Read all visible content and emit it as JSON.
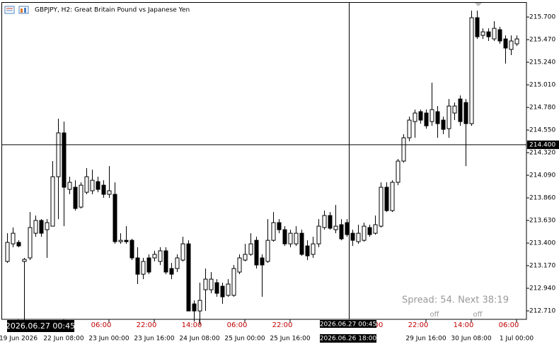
{
  "chart_data": {
    "type": "candlestick",
    "title": "GBPJPY, H2:  Great Britain Pound vs Japanese Yen",
    "up_color": "#ffffff",
    "down_color": "#000000",
    "ylim": [
      212.624,
      215.873
    ],
    "yticks": [
      {
        "value": 215.7,
        "label": "215.700"
      },
      {
        "value": 215.47,
        "label": "215.470"
      },
      {
        "value": 215.24,
        "label": "215.240"
      },
      {
        "value": 215.01,
        "label": "215.010"
      },
      {
        "value": 214.78,
        "label": "214.780"
      },
      {
        "value": 214.55,
        "label": "214.550"
      },
      {
        "value": 214.32,
        "label": "214.320"
      },
      {
        "value": 214.09,
        "label": "214.090"
      },
      {
        "value": 213.86,
        "label": "213.860"
      },
      {
        "value": 213.63,
        "label": "213.630"
      },
      {
        "value": 213.4,
        "label": "213.400"
      },
      {
        "value": 213.17,
        "label": "213.170"
      },
      {
        "value": 212.94,
        "label": "212.940"
      },
      {
        "value": 212.71,
        "label": "212.710"
      }
    ],
    "categories": [
      null,
      null,
      "19 Jun 2026",
      null,
      null,
      null,
      null,
      null,
      null,
      null,
      "22 Jun 08:00",
      null,
      null,
      null,
      null,
      null,
      null,
      null,
      "23 Jun 00:00",
      null,
      null,
      null,
      null,
      null,
      null,
      null,
      "23 Jun 16:00",
      null,
      null,
      null,
      null,
      null,
      null,
      null,
      "24 Jun 08:00",
      null,
      null,
      null,
      null,
      null,
      null,
      null,
      "25 Jun 00:00",
      null,
      null,
      null,
      null,
      null,
      null,
      null,
      "25 Jun 16:00",
      null,
      null,
      null,
      null,
      null,
      null,
      null,
      null,
      null,
      null,
      null,
      null,
      null,
      null,
      null,
      null,
      null,
      null,
      null,
      null,
      null,
      null,
      null,
      "29 Jun 16:00",
      null,
      null,
      null,
      null,
      null,
      null,
      null,
      "30 Jun 08:00",
      null,
      null,
      null,
      null,
      null,
      null,
      null,
      "1 Jul 00:00"
    ],
    "time_marks": [
      null,
      null,
      null,
      null,
      null,
      null,
      null,
      null,
      null,
      null,
      null,
      null,
      null,
      null,
      null,
      null,
      null,
      "06:00",
      null,
      null,
      null,
      null,
      null,
      null,
      null,
      "22:00",
      null,
      null,
      null,
      null,
      null,
      null,
      null,
      "14:00",
      null,
      null,
      null,
      null,
      null,
      null,
      null,
      "06:00",
      null,
      null,
      null,
      null,
      null,
      null,
      null,
      "22:00",
      null,
      null,
      null,
      null,
      null,
      null,
      null,
      null,
      null,
      null,
      null,
      null,
      null,
      null,
      null,
      "06:00",
      null,
      null,
      null,
      null,
      null,
      null,
      null,
      "22:00",
      null,
      null,
      null,
      null,
      null,
      null,
      null,
      "14:00",
      null,
      null,
      null,
      null,
      null,
      null,
      null,
      "06:00",
      null
    ],
    "open": [
      213.213,
      213.392,
      213.407,
      213.213,
      213.249,
      213.5,
      213.63,
      213.536,
      213.572,
      214.075,
      214.521,
      213.946,
      213.968,
      213.766,
      213.917,
      213.932,
      214.025,
      213.989,
      213.896,
      213.896,
      213.414,
      213.428,
      213.428,
      213.249,
      213.083,
      213.249,
      213.249,
      213.213,
      213.321,
      213.141,
      213.141,
      213.227,
      213.392,
      212.781,
      212.709,
      212.925,
      212.925,
      212.997,
      212.961,
      212.868,
      212.868,
      213.105,
      213.227,
      213.285,
      213.428,
      213.249,
      213.213,
      213.428,
      213.608,
      213.536,
      213.392,
      213.392,
      213.5,
      213.371,
      213.285,
      213.392,
      213.558,
      213.68,
      213.536,
      213.587,
      213.608,
      213.5,
      213.414,
      213.428,
      213.558,
      213.5,
      213.572,
      213.968,
      213.73,
      214.018,
      214.234,
      214.471,
      214.636,
      214.737,
      214.723,
      214.636,
      214.737,
      214.651,
      214.564,
      214.723,
      214.866,
      214.83,
      214.615,
      215.693,
      215.513,
      215.549,
      215.477,
      215.571,
      215.477,
      215.37,
      215.427
    ],
    "high": [
      213.5,
      213.558,
      213.428,
      213.249,
      213.716,
      213.68,
      213.644,
      213.644,
      214.234,
      214.665,
      214.636,
      214.075,
      214.039,
      214.018,
      214.162,
      214.147,
      214.075,
      214.039,
      214.183,
      214.018,
      213.5,
      213.572,
      213.443,
      213.357,
      213.249,
      213.285,
      213.321,
      213.357,
      213.357,
      213.198,
      213.285,
      213.464,
      213.428,
      212.817,
      212.997,
      213.141,
      213.105,
      213.033,
      212.997,
      213.033,
      213.177,
      213.285,
      213.392,
      213.5,
      213.464,
      213.285,
      213.644,
      213.716,
      213.644,
      213.572,
      213.536,
      213.572,
      213.536,
      213.428,
      213.464,
      213.644,
      213.73,
      213.716,
      213.788,
      213.644,
      213.644,
      213.536,
      213.587,
      213.608,
      213.587,
      213.68,
      214.018,
      214.018,
      214.039,
      214.256,
      214.507,
      214.686,
      214.758,
      214.758,
      214.758,
      215.032,
      214.794,
      214.686,
      214.866,
      214.83,
      214.902,
      214.866,
      215.765,
      215.765,
      215.585,
      215.585,
      215.657,
      215.6,
      215.513,
      215.513,
      215.513
    ],
    "low": [
      213.198,
      213.357,
      213.357,
      212.565,
      213.227,
      213.464,
      213.464,
      213.249,
      213.572,
      213.644,
      213.572,
      213.896,
      213.73,
      213.752,
      213.896,
      213.896,
      213.917,
      213.86,
      213.86,
      213.392,
      213.392,
      213.392,
      213.227,
      212.983,
      213.033,
      213.083,
      213.213,
      213.177,
      213.083,
      213.033,
      213.105,
      213.213,
      212.709,
      212.601,
      212.565,
      212.709,
      212.889,
      212.853,
      212.781,
      212.853,
      212.853,
      213.083,
      213.213,
      213.27,
      213.141,
      212.853,
      213.198,
      213.414,
      213.5,
      213.371,
      213.357,
      213.371,
      213.27,
      213.227,
      213.249,
      213.357,
      213.536,
      213.536,
      213.5,
      213.428,
      213.464,
      213.371,
      213.392,
      213.414,
      213.464,
      213.486,
      213.558,
      213.716,
      213.716,
      213.989,
      214.22,
      214.435,
      214.471,
      214.615,
      214.564,
      214.593,
      214.471,
      214.507,
      214.471,
      214.651,
      214.593,
      214.183,
      214.593,
      215.477,
      215.477,
      215.456,
      215.456,
      215.427,
      215.226,
      215.312,
      215.405
    ],
    "close": [
      213.407,
      213.5,
      213.371,
      213.234,
      213.558,
      213.63,
      213.5,
      213.608,
      214.075,
      214.521,
      213.968,
      214.018,
      213.752,
      213.989,
      214.075,
      214.039,
      213.946,
      213.896,
      213.932,
      213.414,
      213.428,
      213.414,
      213.249,
      213.083,
      213.213,
      213.105,
      213.285,
      213.321,
      213.105,
      213.083,
      213.249,
      213.392,
      212.709,
      212.709,
      212.817,
      213.033,
      213.033,
      212.889,
      212.853,
      212.983,
      213.141,
      213.249,
      213.285,
      213.392,
      213.177,
      213.177,
      213.428,
      213.608,
      213.536,
      213.392,
      213.5,
      213.5,
      213.285,
      213.27,
      213.392,
      213.572,
      213.68,
      213.551,
      213.572,
      213.443,
      213.486,
      213.428,
      213.5,
      213.572,
      213.486,
      213.587,
      213.968,
      213.73,
      214.018,
      214.234,
      214.471,
      214.651,
      214.723,
      214.651,
      214.593,
      214.758,
      214.615,
      214.557,
      214.794,
      214.794,
      214.636,
      214.615,
      215.693,
      215.499,
      215.549,
      215.499,
      215.585,
      215.456,
      215.384,
      215.456,
      215.477
    ],
    "crosshair": {
      "price": {
        "value": 214.4,
        "label": "214.400"
      },
      "time": "2026.06.26 18:00",
      "cursor_labels": [
        "2026.06.27 00:45",
        "2026.06.27 00:45"
      ]
    },
    "status": {
      "spread": "Spread: 54. Next 38:19",
      "flags": [
        "off",
        "off"
      ]
    }
  }
}
